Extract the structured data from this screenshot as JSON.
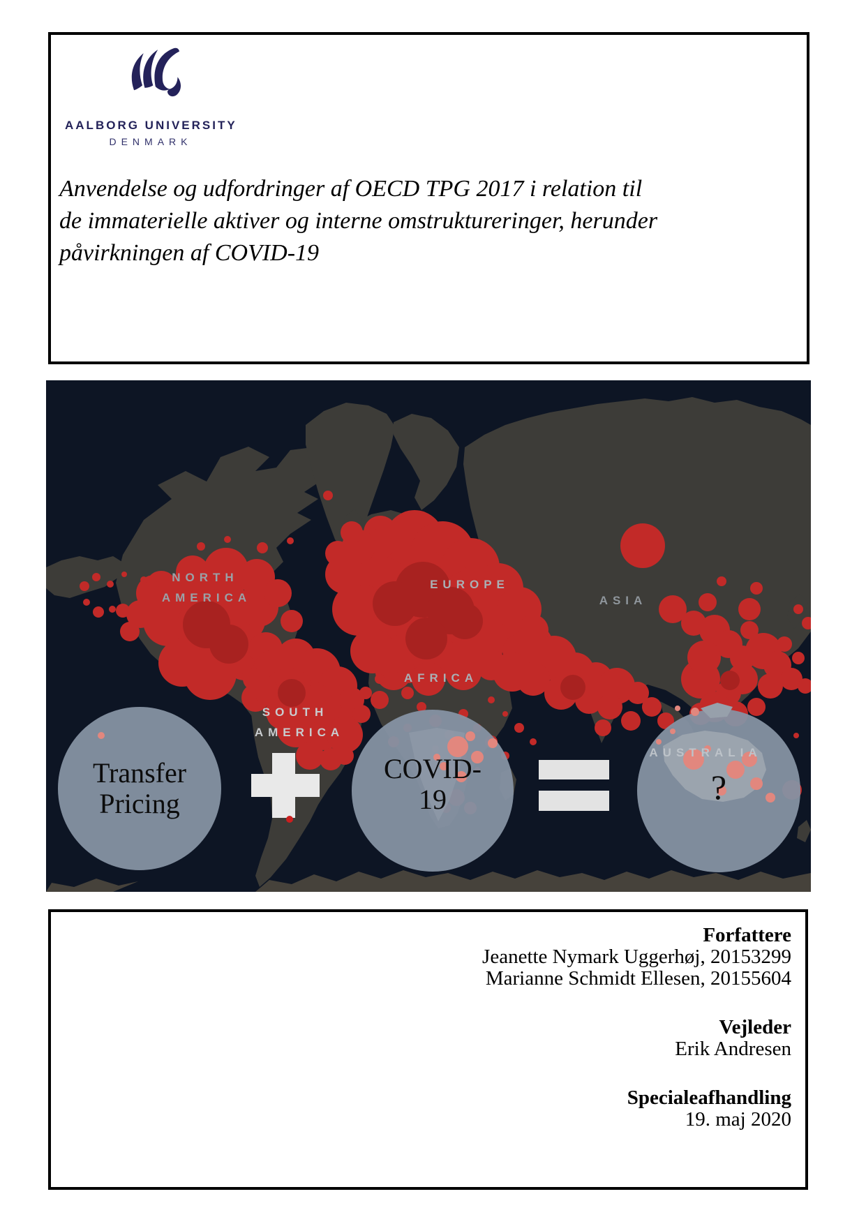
{
  "university": {
    "name": "AALBORG UNIVERSITY",
    "country": "DENMARK"
  },
  "title": {
    "lines": [
      "Anvendelse og udfordringer af OECD TPG 2017 i relation til",
      "de immaterielle aktiver og interne omstruktureringer, herunder",
      "påvirkningen af COVID-19"
    ]
  },
  "map": {
    "labels": {
      "north": "NORTH",
      "north_america": "AMERICA",
      "europe": "EUROPE",
      "asia": "ASIA",
      "africa": "AFRICA",
      "south": "SOUTH",
      "south_america": "AMERICA",
      "australia": "AUSTRALIA"
    },
    "equation": {
      "left_line1": "Transfer",
      "left_line2": "Pricing",
      "mid_line1": "COVID-",
      "mid_line2": "19",
      "result": "?"
    },
    "colors": {
      "ocean": "#0d1524",
      "land": "#3d3c38",
      "antarctica": "#46423b",
      "red": "#c22a28",
      "dark_red": "#a82220",
      "pink": "#e2877e",
      "accent_red": "#cc1f1f",
      "circle": "#8692a3",
      "sign": "#e9e9e9",
      "label_gray": "#9aa1a7",
      "label_light": "#c9cccf"
    },
    "red_dots": [
      [
        205,
        315,
        42
      ],
      [
        245,
        300,
        38
      ],
      [
        175,
        345,
        36
      ],
      [
        235,
        355,
        48
      ],
      [
        275,
        340,
        40
      ],
      [
        305,
        325,
        28
      ],
      [
        195,
        405,
        34
      ],
      [
        235,
        420,
        38
      ],
      [
        285,
        400,
        30
      ],
      [
        315,
        385,
        24
      ],
      [
        335,
        425,
        18
      ],
      [
        155,
        305,
        26
      ],
      [
        135,
        335,
        20
      ],
      [
        258,
        272,
        32
      ],
      [
        302,
        282,
        26
      ],
      [
        332,
        305,
        20
      ],
      [
        352,
        345,
        16
      ],
      [
        300,
        455,
        20
      ],
      [
        330,
        475,
        16
      ],
      [
        350,
        495,
        13
      ],
      [
        368,
        515,
        11
      ],
      [
        380,
        532,
        9
      ],
      [
        120,
        360,
        14
      ],
      [
        110,
        330,
        10
      ],
      [
        165,
        295,
        22
      ],
      [
        210,
        275,
        24
      ],
      [
        55,
        295,
        7
      ],
      [
        72,
        282,
        6
      ],
      [
        92,
        292,
        5
      ],
      [
        112,
        278,
        4
      ],
      [
        140,
        286,
        5
      ],
      [
        160,
        292,
        4
      ],
      [
        58,
        318,
        5
      ],
      [
        75,
        332,
        8
      ],
      [
        95,
        328,
        5
      ],
      [
        222,
        238,
        6
      ],
      [
        260,
        228,
        5
      ],
      [
        404,
        165,
        7
      ],
      [
        479,
        218,
        24
      ],
      [
        440,
        250,
        6
      ],
      [
        310,
        240,
        8
      ],
      [
        350,
        230,
        5
      ],
      [
        488,
        248,
        38
      ],
      [
        528,
        228,
        42
      ],
      [
        568,
        248,
        46
      ],
      [
        608,
        268,
        42
      ],
      [
        528,
        288,
        52
      ],
      [
        478,
        298,
        46
      ],
      [
        568,
        308,
        52
      ],
      [
        608,
        318,
        46
      ],
      [
        448,
        328,
        38
      ],
      [
        498,
        348,
        50
      ],
      [
        548,
        358,
        46
      ],
      [
        598,
        358,
        42
      ],
      [
        638,
        338,
        38
      ],
      [
        468,
        388,
        32
      ],
      [
        518,
        398,
        36
      ],
      [
        558,
        398,
        33
      ],
      [
        618,
        388,
        36
      ],
      [
        658,
        358,
        32
      ],
      [
        428,
        278,
        28
      ],
      [
        448,
        238,
        24
      ],
      [
        648,
        298,
        36
      ],
      [
        678,
        328,
        32
      ],
      [
        438,
        218,
        16
      ],
      [
        418,
        248,
        18
      ],
      [
        498,
        418,
        26
      ],
      [
        548,
        428,
        24
      ],
      [
        598,
        418,
        26
      ],
      [
        638,
        408,
        22
      ],
      [
        678,
        388,
        24
      ],
      [
        698,
        358,
        22
      ],
      [
        698,
        378,
        28
      ],
      [
        728,
        398,
        32
      ],
      [
        758,
        418,
        28
      ],
      [
        788,
        428,
        24
      ],
      [
        818,
        438,
        26
      ],
      [
        698,
        428,
        24
      ],
      [
        668,
        418,
        28
      ],
      [
        738,
        448,
        24
      ],
      [
        778,
        458,
        20
      ],
      [
        808,
        468,
        18
      ],
      [
        848,
        448,
        16
      ],
      [
        868,
        468,
        14
      ],
      [
        888,
        488,
        12
      ],
      [
        838,
        488,
        14
      ],
      [
        798,
        498,
        12
      ],
      [
        855,
        237,
        32
      ],
      [
        898,
        328,
        20
      ],
      [
        928,
        348,
        18
      ],
      [
        948,
        318,
        13
      ],
      [
        958,
        358,
        22
      ],
      [
        978,
        378,
        20
      ],
      [
        998,
        398,
        18
      ],
      [
        1008,
        358,
        13
      ],
      [
        1028,
        388,
        26
      ],
      [
        1048,
        408,
        20
      ],
      [
        1068,
        428,
        16
      ],
      [
        1038,
        438,
        18
      ],
      [
        998,
        428,
        22
      ],
      [
        978,
        448,
        18
      ],
      [
        1058,
        378,
        11
      ],
      [
        1078,
        398,
        9
      ],
      [
        1088,
        438,
        11
      ],
      [
        1018,
        298,
        9
      ],
      [
        968,
        288,
        7
      ],
      [
        938,
        428,
        28
      ],
      [
        958,
        468,
        22
      ],
      [
        988,
        478,
        18
      ],
      [
        1018,
        468,
        13
      ],
      [
        938,
        478,
        16
      ],
      [
        1078,
        328,
        7
      ],
      [
        1092,
        348,
        9
      ],
      [
        1008,
        328,
        16
      ],
      [
        943,
        397,
        24
      ],
      [
        498,
        428,
        11
      ],
      [
        518,
        448,
        9
      ],
      [
        478,
        458,
        13
      ],
      [
        538,
        468,
        7
      ],
      [
        558,
        488,
        9
      ],
      [
        578,
        508,
        7
      ],
      [
        518,
        498,
        6
      ],
      [
        498,
        518,
        8
      ],
      [
        558,
        528,
        5
      ],
      [
        598,
        478,
        7
      ],
      [
        618,
        498,
        6
      ],
      [
        638,
        518,
        9
      ],
      [
        598,
        538,
        5
      ],
      [
        578,
        558,
        7
      ],
      [
        618,
        558,
        4
      ],
      [
        658,
        538,
        6
      ],
      [
        478,
        428,
        7
      ],
      [
        458,
        448,
        9
      ],
      [
        538,
        428,
        5
      ],
      [
        638,
        458,
        5
      ],
      [
        658,
        478,
        4
      ],
      [
        598,
        428,
        4
      ],
      [
        678,
        498,
        7
      ],
      [
        698,
        518,
        5
      ],
      [
        588,
        598,
        12
      ],
      [
        608,
        613,
        9
      ],
      [
        573,
        613,
        7
      ],
      [
        328,
        418,
        32
      ],
      [
        358,
        398,
        28
      ],
      [
        388,
        418,
        34
      ],
      [
        418,
        438,
        28
      ],
      [
        348,
        448,
        36
      ],
      [
        388,
        468,
        32
      ],
      [
        418,
        478,
        26
      ],
      [
        358,
        498,
        28
      ],
      [
        398,
        508,
        22
      ],
      [
        428,
        508,
        26
      ],
      [
        378,
        538,
        20
      ],
      [
        408,
        543,
        16
      ],
      [
        338,
        478,
        22
      ],
      [
        318,
        448,
        18
      ],
      [
        438,
        458,
        18
      ],
      [
        452,
        478,
        13
      ],
      [
        428,
        538,
        13
      ],
      [
        298,
        428,
        16
      ],
      [
        278,
        408,
        13
      ],
      [
        1069,
        587,
        14
      ],
      [
        1075,
        509,
        4
      ]
    ],
    "dark_dots": [
      [
        540,
        300,
        40
      ],
      [
        580,
        330,
        34
      ],
      [
        500,
        320,
        32
      ],
      [
        230,
        350,
        34
      ],
      [
        262,
        378,
        28
      ],
      [
        352,
        448,
        20
      ],
      [
        980,
        430,
        14
      ],
      [
        755,
        440,
        18
      ],
      [
        545,
        370,
        30
      ],
      [
        600,
        345,
        26
      ]
    ],
    "pink_dots": [
      [
        928,
        543,
        15
      ],
      [
        988,
        558,
        13
      ],
      [
        1008,
        543,
        11
      ],
      [
        1018,
        578,
        9
      ],
      [
        968,
        588,
        7
      ],
      [
        948,
        528,
        5
      ],
      [
        1038,
        598,
        7
      ],
      [
        878,
        518,
        4
      ],
      [
        898,
        503,
        4
      ],
      [
        930,
        475,
        6
      ],
      [
        905,
        470,
        4
      ],
      [
        79,
        509,
        5
      ],
      [
        590,
        525,
        15
      ],
      [
        618,
        540,
        9
      ],
      [
        640,
        520,
        7
      ],
      [
        608,
        510,
        7
      ],
      [
        570,
        553,
        6
      ],
      [
        595,
        568,
        8
      ],
      [
        560,
        540,
        5
      ]
    ],
    "accent_dots": [
      [
        349,
        629,
        5
      ]
    ]
  },
  "credits": {
    "authors_heading": "Forfattere",
    "authors": [
      "Jeanette Nymark Uggerhøj, 20153299",
      "Marianne Schmidt Ellesen, 20155604"
    ],
    "supervisor_heading": "Vejleder",
    "supervisor": "Erik Andresen",
    "type_heading": "Specialeafhandling",
    "date": "19. maj 2020"
  }
}
